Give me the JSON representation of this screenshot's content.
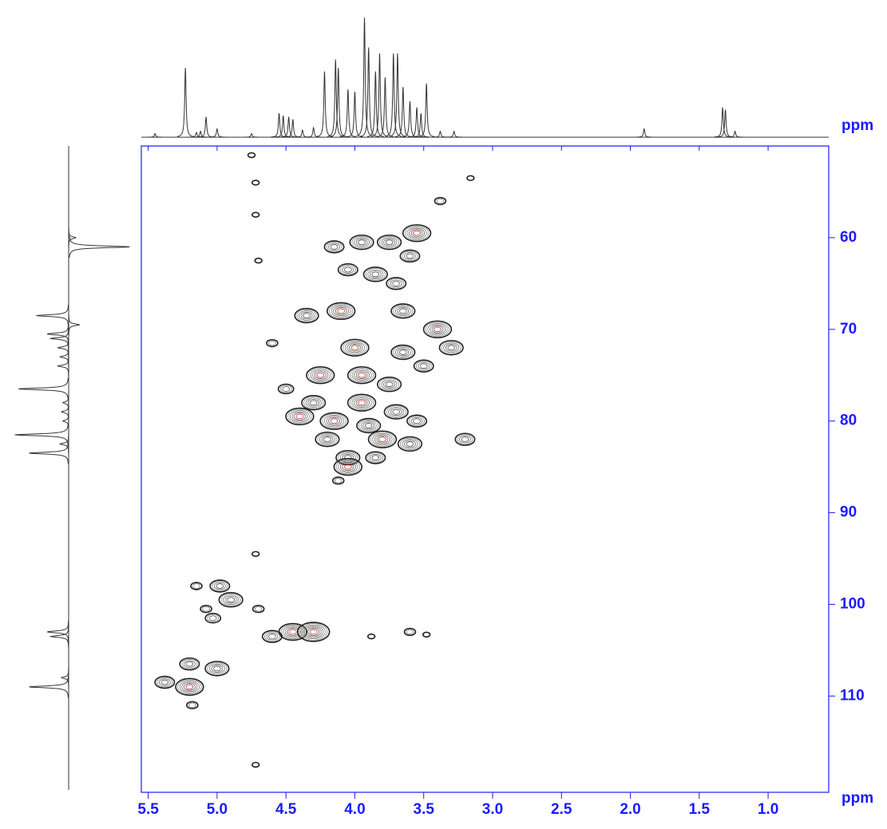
{
  "chart_data": {
    "type": "contour2d",
    "x_label": "ppm",
    "projection_label": "ppm",
    "xlim": [
      5.55,
      0.56
    ],
    "ylim": [
      50,
      120.5
    ],
    "xticks": [
      5.5,
      {
        "value": 5,
        "label": "5.0"
      },
      4.5,
      {
        "value": 4,
        "label": "4.0"
      },
      3.5,
      {
        "value": 3,
        "label": "3.0"
      },
      2.5,
      {
        "value": 2,
        "label": "2.0"
      },
      1.5,
      {
        "value": 1,
        "label": "1.0"
      }
    ],
    "yticks": [
      60,
      70,
      80,
      90,
      100,
      110
    ],
    "axis_color": "#1a1aff",
    "contour_color": "#222222",
    "peak_center_color": "#cc1111",
    "peaks": {
      "x": [
        3.55,
        4.15,
        3.95,
        3.75,
        3.6,
        4.05,
        3.85,
        3.7,
        4.35,
        4.1,
        3.65,
        3.4,
        3.3,
        4.0,
        3.65,
        3.5,
        4.25,
        3.95,
        3.75,
        4.3,
        3.95,
        3.7,
        4.4,
        4.15,
        3.9,
        3.55,
        4.2,
        3.8,
        3.6,
        3.2,
        4.05,
        4.05,
        3.85,
        4.5,
        4.6,
        3.38,
        3.16,
        4.12,
        4.72,
        4.72,
        4.7,
        4.72,
        4.72,
        4.75,
        5.15,
        4.98,
        4.9,
        5.03,
        5.08,
        4.7,
        4.45,
        4.3,
        4.6,
        3.6,
        3.48,
        3.88,
        5.38,
        5.2,
        5.0,
        5.2,
        5.18
      ],
      "y": [
        59.5,
        61,
        60.5,
        60.5,
        62,
        63.5,
        64,
        65,
        68.5,
        68,
        68,
        70,
        72,
        72,
        72.5,
        74,
        75,
        75,
        76,
        78,
        78,
        79,
        79.5,
        80,
        80.5,
        80,
        82,
        82,
        82.5,
        82,
        84,
        85,
        84,
        76.5,
        71.5,
        56,
        53.5,
        86.5,
        54,
        57.5,
        62.5,
        94.5,
        117.5,
        51,
        98,
        98,
        99.5,
        101.5,
        100.5,
        100.5,
        103,
        103,
        103.5,
        103,
        103.3,
        103.5,
        108.5,
        109,
        107,
        106.5,
        111
      ],
      "size": [
        6,
        4,
        5,
        5,
        4,
        4,
        5,
        4,
        5,
        6,
        5,
        6,
        5,
        6,
        5,
        4,
        6,
        6,
        5,
        5,
        6,
        5,
        6,
        6,
        5,
        4,
        5,
        6,
        5,
        4,
        5,
        6,
        4,
        3,
        2,
        2,
        1,
        2,
        1,
        1,
        1,
        1,
        1,
        1,
        2,
        4,
        5,
        3,
        2,
        2,
        6,
        7,
        4,
        2,
        1,
        1,
        4,
        6,
        5,
        4,
        2
      ]
    },
    "top_projection": {
      "x": [
        5.45,
        5.23,
        5.15,
        5.12,
        5.08,
        5.0,
        4.75,
        4.55,
        4.52,
        4.48,
        4.45,
        4.38,
        4.3,
        4.22,
        4.14,
        4.12,
        4.05,
        4.0,
        3.93,
        3.9,
        3.85,
        3.82,
        3.78,
        3.72,
        3.69,
        3.65,
        3.6,
        3.55,
        3.52,
        3.48,
        3.38,
        3.28,
        1.9,
        1.33,
        1.31,
        1.24
      ],
      "values": [
        3,
        58,
        4,
        5,
        17,
        7,
        3,
        20,
        18,
        17,
        15,
        6,
        8,
        55,
        65,
        58,
        40,
        38,
        100,
        75,
        55,
        70,
        50,
        70,
        70,
        42,
        30,
        25,
        20,
        45,
        5,
        5,
        7,
        25,
        23,
        5
      ]
    },
    "left_projection": {
      "y": [
        60,
        61,
        68.5,
        69.5,
        70.5,
        71,
        72,
        73,
        74,
        76.5,
        78,
        79,
        80,
        81.5,
        82.5,
        83.5,
        103,
        103.5,
        108,
        109
      ],
      "values": [
        -10,
        -85,
        45,
        -15,
        30,
        25,
        15,
        12,
        15,
        70,
        8,
        10,
        8,
        75,
        12,
        55,
        30,
        25,
        10,
        55
      ]
    }
  }
}
